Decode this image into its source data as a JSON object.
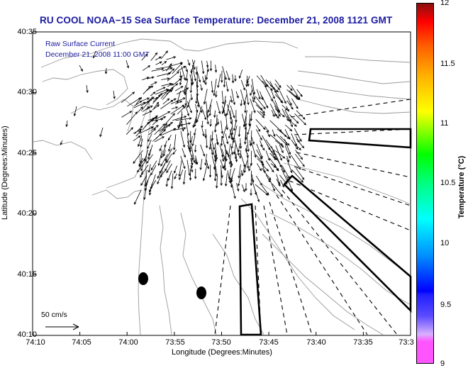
{
  "title": "RU COOL  NOAA−15  Sea Surface Temperature:  December 21, 2008 1121 GMT",
  "info_line1": "Raw Surface Current",
  "info_line2": "December 21, 2008 11:00 GMT",
  "scale_label": "50 cm/s",
  "y_axis": {
    "title": "Latitude (Degrees:Minutes)",
    "ticks": [
      "40:35",
      "40:30",
      "40:25",
      "40:20",
      "40:15",
      "40:10"
    ]
  },
  "x_axis": {
    "title": "Longitude (Degrees:Minutes)",
    "ticks": [
      "74:10",
      "74:05",
      "74:00",
      "73:55",
      "73:50",
      "73:45",
      "73:40",
      "73:35",
      "73:3"
    ]
  },
  "colorbar": {
    "title": "Temperature (°C)",
    "ticks": [
      "12",
      "11.5",
      "11",
      "10.5",
      "10",
      "9.5",
      "9"
    ]
  },
  "colors": {
    "title_text": "#1a1aa0",
    "land_contour": "#9a9a9a",
    "vectors": "#000000"
  }
}
